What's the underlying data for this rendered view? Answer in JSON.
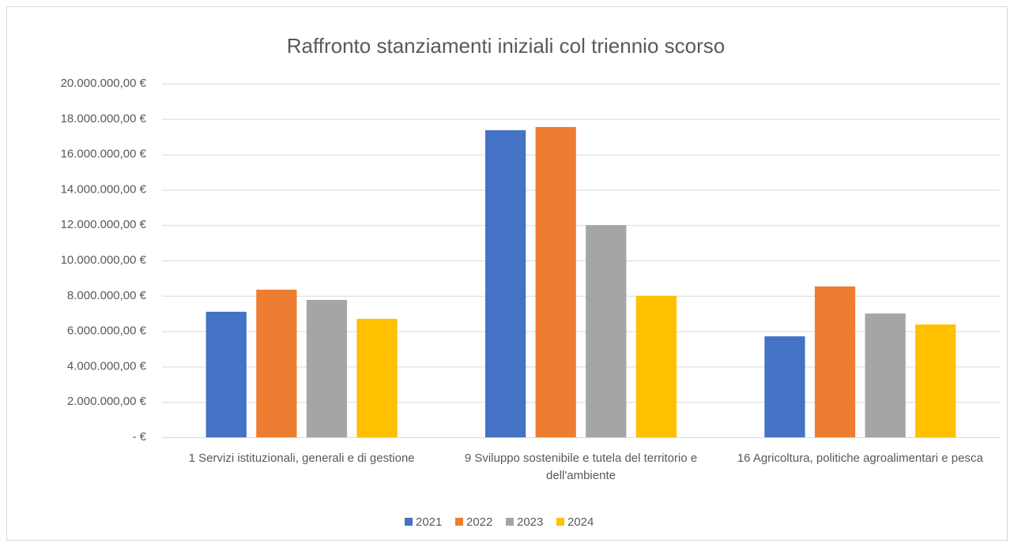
{
  "chart_data": {
    "type": "bar",
    "title": "Raffronto stanziamenti iniziali col triennio scorso",
    "categories": [
      "1 Servizi istituzionali, generali e di gestione",
      "9 Sviluppo sostenibile e tutela del territorio e dell'ambiente",
      "16 Agricoltura, politiche agroalimentari e pesca"
    ],
    "series": [
      {
        "name": "2021",
        "color": "#4472c4",
        "values": [
          7100000,
          17370000,
          5710000
        ]
      },
      {
        "name": "2022",
        "color": "#ed7d31",
        "values": [
          8350000,
          17550000,
          8530000
        ]
      },
      {
        "name": "2023",
        "color": "#a5a5a5",
        "values": [
          7770000,
          12000000,
          7000000
        ]
      },
      {
        "name": "2024",
        "color": "#ffc000",
        "values": [
          6700000,
          8000000,
          6380000
        ]
      }
    ],
    "ylim": [
      0,
      20000000
    ],
    "yticks": [
      {
        "value": 0,
        "label": "-  €"
      },
      {
        "value": 2000000,
        "label": "2.000.000,00 €"
      },
      {
        "value": 4000000,
        "label": "4.000.000,00 €"
      },
      {
        "value": 6000000,
        "label": "6.000.000,00 €"
      },
      {
        "value": 8000000,
        "label": "8.000.000,00 €"
      },
      {
        "value": 10000000,
        "label": "10.000.000,00 €"
      },
      {
        "value": 12000000,
        "label": "12.000.000,00 €"
      },
      {
        "value": 14000000,
        "label": "14.000.000,00 €"
      },
      {
        "value": 16000000,
        "label": "16.000.000,00 €"
      },
      {
        "value": 18000000,
        "label": "18.000.000,00 €"
      },
      {
        "value": 20000000,
        "label": "20.000.000,00 €"
      }
    ],
    "grid": true,
    "legend": "bottom"
  }
}
